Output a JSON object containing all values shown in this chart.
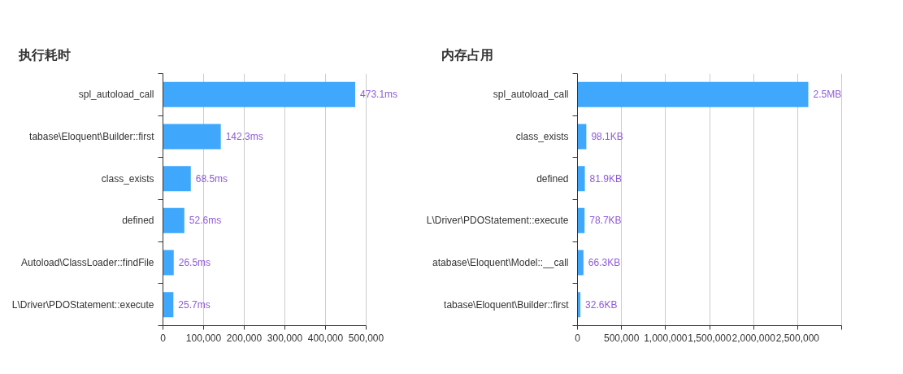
{
  "chart_data": [
    {
      "type": "bar",
      "orientation": "horizontal",
      "title": "执行耗时",
      "categories": [
        "spl_autoload_call",
        "tabase\\Eloquent\\Builder::first",
        "class_exists",
        "defined",
        "Autoload\\ClassLoader::findFile",
        "L\\Driver\\PDOStatement::execute"
      ],
      "values": [
        473100,
        142300,
        68500,
        52600,
        26500,
        25700
      ],
      "annotations": [
        {
          "text": "473.1ms",
          "x": 473100,
          "y": "spl_autoload_call"
        },
        {
          "text": "142.3ms",
          "x": 142300,
          "y": "tabase\\Eloquent\\Builder::first"
        },
        {
          "text": "68.5ms",
          "x": 68500,
          "y": "class_exists"
        },
        {
          "text": "52.6ms",
          "x": 52600,
          "y": "defined"
        },
        {
          "text": "26.5ms",
          "x": 26500,
          "y": "Autoload\\ClassLoader::findFile"
        },
        {
          "text": "25.7ms",
          "x": 25700,
          "y": "L\\Driver\\PDOStatement::execute"
        }
      ],
      "color": "#3fa7fc",
      "xlim": [
        0,
        500000
      ],
      "xticks": [
        0,
        {
          "value": 100000,
          "label": "100,000"
        },
        {
          "value": 200000,
          "label": "200,000"
        },
        {
          "value": 300000,
          "label": "300,000"
        },
        {
          "value": 400000,
          "label": "400,000"
        },
        {
          "value": 500000,
          "label": "500,000"
        }
      ],
      "grid": "x"
    },
    {
      "type": "bar",
      "orientation": "horizontal",
      "title": "内存占用",
      "categories": [
        "spl_autoload_call",
        "class_exists",
        "defined",
        "L\\Driver\\PDOStatement::execute",
        "atabase\\Eloquent\\Model::__call",
        "tabase\\Eloquent\\Builder::first"
      ],
      "values": [
        2621440,
        100454,
        83866,
        80589,
        67891,
        33382
      ],
      "annotations": [
        {
          "text": "2.5MB",
          "x": 2621440,
          "y": "spl_autoload_call"
        },
        {
          "text": "98.1KB",
          "x": 100454,
          "y": "class_exists"
        },
        {
          "text": "81.9KB",
          "x": 83866,
          "y": "defined"
        },
        {
          "text": "78.7KB",
          "x": 80589,
          "y": "L\\Driver\\PDOStatement::execute"
        },
        {
          "text": "66.3KB",
          "x": 67891,
          "y": "atabase\\Eloquent\\Model::__call"
        },
        {
          "text": "32.6KB",
          "x": 33382,
          "y": "tabase\\Eloquent\\Builder::first"
        }
      ],
      "color": "#3fa7fc",
      "xlim": [
        0,
        3000000
      ],
      "xticks": [
        0,
        {
          "value": 500000,
          "label": "500,000"
        },
        {
          "value": 1000000,
          "label": "1,000,000"
        },
        {
          "value": 1500000,
          "label": "1,500,000"
        },
        {
          "value": 2000000,
          "label": "2,000,000"
        },
        {
          "value": 2500000,
          "label": "2,500,000"
        },
        {
          "value": 3000000,
          "label": null
        }
      ],
      "grid": "x"
    }
  ]
}
